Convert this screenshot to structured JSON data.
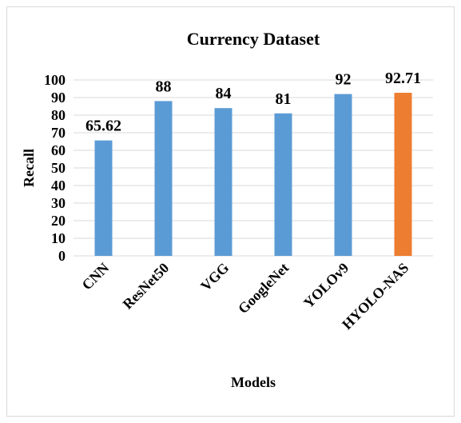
{
  "chart_data": {
    "type": "bar",
    "title": "Currency Dataset",
    "x_label": "Models",
    "y_label": "Recall",
    "categories": [
      "CNN",
      "ResNet50",
      "VGG",
      "GoogleNet",
      "YOLOv9",
      "HYOLO-NAS"
    ],
    "values": [
      65.62,
      88,
      84,
      81,
      92,
      92.71
    ],
    "colors": [
      "#5b9bd5",
      "#5b9bd5",
      "#5b9bd5",
      "#5b9bd5",
      "#5b9bd5",
      "#ed7d31"
    ],
    "ylim": [
      0,
      100
    ],
    "yticks": [
      0,
      10,
      20,
      30,
      40,
      50,
      60,
      70,
      80,
      90,
      100
    ],
    "grid": true
  }
}
